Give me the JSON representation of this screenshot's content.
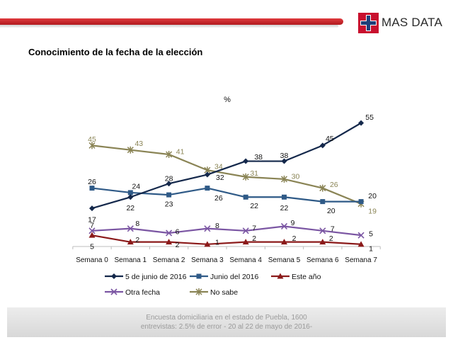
{
  "header": {
    "logo_text": "MAS DATA",
    "brand_color": "#c8102e",
    "logo_blue": "#1f3f7a"
  },
  "title": "Conocimiento de la fecha de la elección",
  "chart_data": {
    "type": "line",
    "title": "",
    "unit_label": "%",
    "categories": [
      "Semana 0",
      "Semana 1",
      "Semana 2",
      "Semana 3",
      "Semana 4",
      "Semana 5",
      "Semana 6",
      "Semana 7"
    ],
    "ylim": [
      0,
      60
    ],
    "grid": false,
    "legend_position": "bottom",
    "series": [
      {
        "name": "5 de junio de 2016",
        "values": [
          17,
          22,
          28,
          32,
          38,
          38,
          45,
          55
        ],
        "color": "#14284b",
        "marker": "diamond"
      },
      {
        "name": "Junio del 2016",
        "values": [
          26,
          24,
          23,
          26,
          22,
          22,
          20,
          20
        ],
        "color": "#2f5a87",
        "marker": "square"
      },
      {
        "name": "Este año",
        "values": [
          5,
          2,
          2,
          1,
          2,
          2,
          2,
          1
        ],
        "color": "#8b1a1a",
        "marker": "triangle"
      },
      {
        "name": "Otra fecha",
        "values": [
          7,
          8,
          6,
          8,
          7,
          9,
          7,
          5
        ],
        "color": "#7b56a3",
        "marker": "x"
      },
      {
        "name": "No sabe",
        "values": [
          45,
          43,
          41,
          34,
          31,
          30,
          26,
          19
        ],
        "color": "#8a8455",
        "marker": "star"
      }
    ]
  },
  "footer": {
    "line1": "Encuesta domiciliaria en el estado de Puebla, 1600",
    "line2": "entrevistas: 2.5% de error - 20 al 22 de mayo de 2016-"
  }
}
